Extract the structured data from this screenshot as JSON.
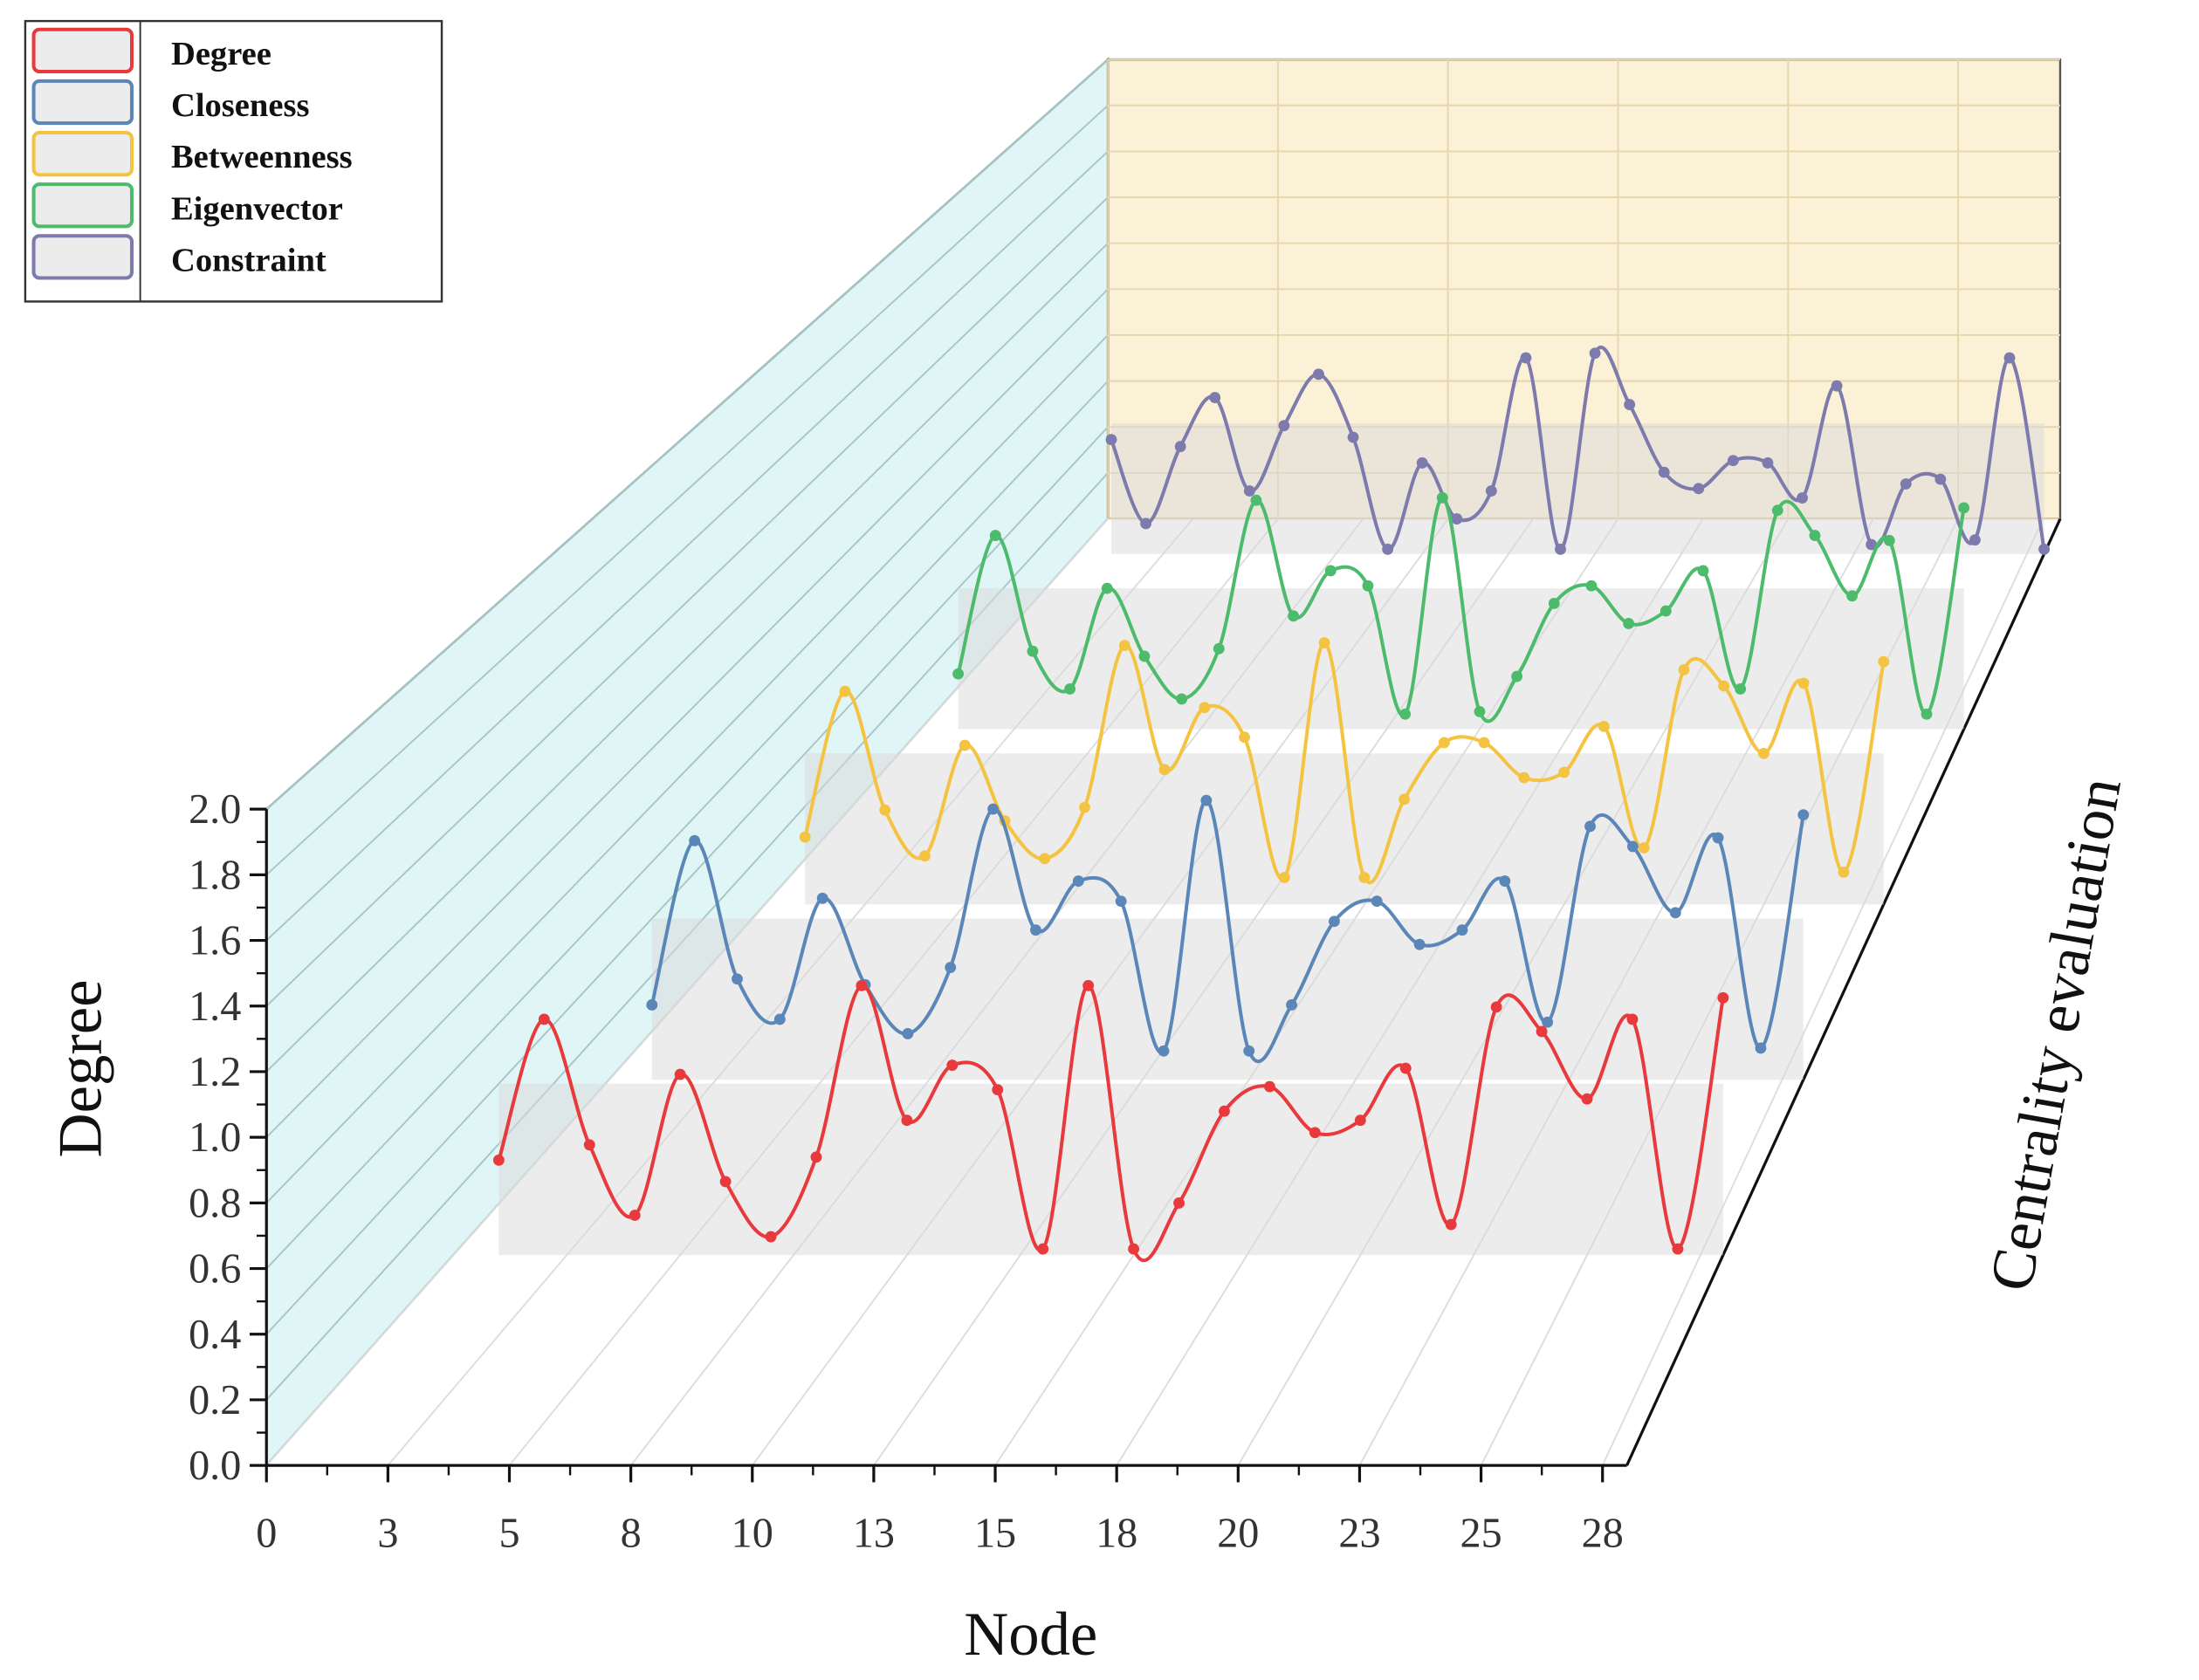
{
  "chart_data": {
    "type": "line",
    "x_label": "Node",
    "y_label": "Degree",
    "z_label": "Centrality evaluation",
    "x": [
      1,
      2,
      3,
      4,
      5,
      6,
      7,
      8,
      9,
      10,
      11,
      12,
      13,
      14,
      15,
      16,
      17,
      18,
      19,
      20,
      21,
      22,
      23,
      24,
      25,
      26,
      27,
      28
    ],
    "xlim": [
      0,
      28
    ],
    "xticks": [
      0,
      {
        "value": 2.5,
        "label": "3"
      },
      5,
      {
        "value": 7.5,
        "label": "8"
      },
      10,
      {
        "value": 12.5,
        "label": "13"
      },
      15,
      {
        "value": 17.5,
        "label": "18"
      },
      20,
      {
        "value": 22.5,
        "label": "23"
      },
      25,
      {
        "value": 27.5,
        "label": "28"
      }
    ],
    "ylim": [
      0,
      2
    ],
    "yticks": [
      {
        "value": 0,
        "label": "0.0"
      },
      0.2,
      0.4,
      0.6,
      0.8,
      {
        "value": 1,
        "label": "1.0"
      },
      1.2,
      1.4,
      1.6,
      1.8,
      {
        "value": 2,
        "label": "2.0"
      }
    ],
    "legend": "upper left",
    "series": [
      {
        "name": "Degree",
        "color": "#e8393c",
        "values": [
          0.31,
          0.77,
          0.36,
          0.13,
          0.59,
          0.24,
          0.06,
          0.32,
          0.88,
          0.44,
          0.62,
          0.54,
          0.02,
          0.88,
          0.02,
          0.17,
          0.47,
          0.55,
          0.4,
          0.44,
          0.61,
          0.1,
          0.81,
          0.73,
          0.51,
          0.77,
          0.02,
          0.84
        ]
      },
      {
        "name": "Closeness",
        "color": "#5b86b8",
        "values": [
          0.26,
          0.83,
          0.35,
          0.21,
          0.63,
          0.33,
          0.16,
          0.39,
          0.94,
          0.52,
          0.69,
          0.62,
          0.1,
          0.97,
          0.1,
          0.26,
          0.55,
          0.62,
          0.47,
          0.52,
          0.69,
          0.2,
          0.88,
          0.81,
          0.58,
          0.84,
          0.11,
          0.92
        ]
      },
      {
        "name": "Betweenness",
        "color": "#f5c342",
        "values": [
          0.25,
          0.79,
          0.35,
          0.18,
          0.59,
          0.31,
          0.17,
          0.36,
          0.96,
          0.5,
          0.73,
          0.62,
          0.1,
          0.97,
          0.1,
          0.39,
          0.6,
          0.6,
          0.47,
          0.49,
          0.66,
          0.21,
          0.87,
          0.81,
          0.56,
          0.82,
          0.12,
          0.9
        ]
      },
      {
        "name": "Eigenvector",
        "color": "#4cbb6c",
        "values": [
          0.22,
          0.77,
          0.31,
          0.16,
          0.56,
          0.29,
          0.12,
          0.32,
          0.91,
          0.45,
          0.63,
          0.57,
          0.06,
          0.92,
          0.07,
          0.21,
          0.5,
          0.57,
          0.42,
          0.47,
          0.63,
          0.16,
          0.87,
          0.77,
          0.53,
          0.75,
          0.06,
          0.88
        ]
      },
      {
        "name": "Constraint",
        "color": "#7d7aae",
        "values": [
          0.49,
          0.13,
          0.46,
          0.67,
          0.27,
          0.55,
          0.77,
          0.5,
          0.02,
          0.39,
          0.15,
          0.27,
          0.84,
          0.02,
          0.86,
          0.64,
          0.35,
          0.28,
          0.4,
          0.39,
          0.24,
          0.72,
          0.04,
          0.3,
          0.32,
          0.06,
          0.84,
          0.02
        ]
      }
    ]
  }
}
